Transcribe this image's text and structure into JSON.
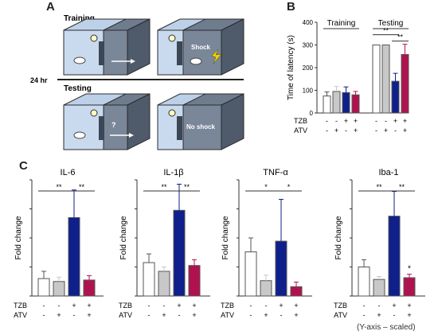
{
  "panels": {
    "a": "A",
    "b": "B",
    "c": "C"
  },
  "schematic": {
    "training_label": "Training",
    "testing_label": "Testing",
    "interval_label": "24 hr",
    "shock_label": "Shock",
    "no_shock_label": "No shock",
    "question_mark": "?"
  },
  "treatment_labels": {
    "tzb": "TZB",
    "atv": "ATV"
  },
  "footnote": "(Y-axis – scaled)",
  "colors": {
    "control": "#ffffff",
    "atv": "#c8c8c8",
    "tzb": "#0f1f8c",
    "tzb_atv": "#b0124f",
    "stroke": "#555555"
  },
  "chart_data": [
    {
      "type": "bar",
      "id": "latency",
      "ylabel": "Time of latency (s)",
      "ylim": [
        0,
        400
      ],
      "yticks": [
        "0",
        "100",
        "200",
        "300",
        "400"
      ],
      "groups": [
        "Training",
        "Testing"
      ],
      "tzb": [
        "-",
        "-",
        "+",
        "+",
        "-",
        "-",
        "+",
        "+"
      ],
      "atv": [
        "-",
        "+",
        "-",
        "+",
        "-",
        "+",
        "-",
        "+"
      ],
      "values": [
        75,
        95,
        90,
        80,
        300,
        300,
        140,
        258
      ],
      "errors": [
        18,
        22,
        25,
        15,
        0,
        0,
        35,
        45
      ],
      "significance": [
        "**",
        "**"
      ]
    },
    {
      "type": "bar",
      "id": "il6",
      "title": "IL-6",
      "ylabel": "Fold change",
      "ylim": [
        0,
        8
      ],
      "tzb": [
        "-",
        "-",
        "+",
        "+"
      ],
      "atv": [
        "-",
        "+",
        "-",
        "+"
      ],
      "values": [
        1.2,
        1.0,
        5.4,
        1.1
      ],
      "errors": [
        0.5,
        0.3,
        1.9,
        0.3
      ],
      "significance": [
        "**",
        "**"
      ]
    },
    {
      "type": "bar",
      "id": "il1b",
      "title": "IL-1β",
      "ylabel": "Fold change",
      "ylim": [
        0,
        4
      ],
      "tzb": [
        "-",
        "-",
        "+",
        "+"
      ],
      "atv": [
        "-",
        "+",
        "-",
        "+"
      ],
      "values": [
        1.15,
        0.85,
        2.95,
        1.05
      ],
      "errors": [
        0.3,
        0.15,
        0.9,
        0.2
      ],
      "significance": [
        "**",
        "**"
      ]
    },
    {
      "type": "bar",
      "id": "tnfa",
      "title": "TNF-α",
      "ylabel": "Fold change",
      "ylim": [
        0,
        2.5
      ],
      "tzb": [
        "-",
        "-",
        "+",
        "+"
      ],
      "atv": [
        "-",
        "+",
        "-",
        "+"
      ],
      "values": [
        0.95,
        0.33,
        1.18,
        0.2
      ],
      "errors": [
        0.3,
        0.12,
        0.9,
        0.1
      ],
      "significance": [
        "*",
        "*"
      ]
    },
    {
      "type": "bar",
      "id": "iba1",
      "title": "Iba-1",
      "ylabel": "Fold change",
      "ylim": [
        0,
        4
      ],
      "tzb": [
        "-",
        "-",
        "+",
        "+"
      ],
      "atv": [
        "-",
        "+",
        "-",
        "+"
      ],
      "values": [
        1.0,
        0.57,
        2.75,
        0.63
      ],
      "errors": [
        0.25,
        0.1,
        0.85,
        0.12
      ],
      "significance": [
        "**",
        "**"
      ],
      "extra_marks": [
        "*"
      ]
    }
  ]
}
